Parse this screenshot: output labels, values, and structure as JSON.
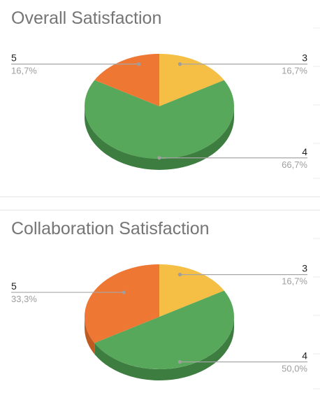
{
  "chart_data": [
    {
      "type": "pie",
      "title": "Overall Satisfaction",
      "categories": [
        "3",
        "4",
        "5"
      ],
      "values": [
        16.7,
        66.7,
        16.7
      ],
      "labels": [
        "16,7%",
        "66,7%",
        "16,7%"
      ],
      "colors": [
        "#f5be45",
        "#58a85b",
        "#ee7733"
      ],
      "side_colors": [
        "#c99b32",
        "#3d7d40",
        "#bd5b22"
      ]
    },
    {
      "type": "pie",
      "title": "Collaboration Satisfaction",
      "categories": [
        "3",
        "4",
        "5"
      ],
      "values": [
        16.7,
        50.0,
        33.3
      ],
      "labels": [
        "16,7%",
        "50,0%",
        "33,3%"
      ],
      "colors": [
        "#f5be45",
        "#58a85b",
        "#ee7733"
      ],
      "side_colors": [
        "#c99b32",
        "#3d7d40",
        "#bd5b22"
      ]
    }
  ]
}
